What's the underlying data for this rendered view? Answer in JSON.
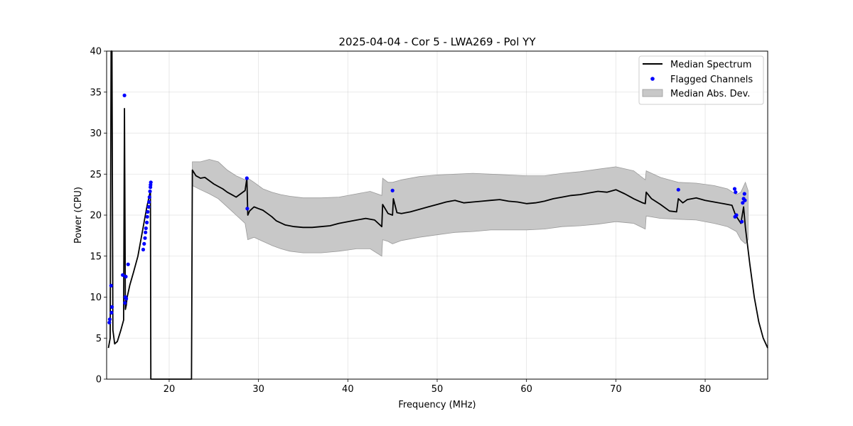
{
  "chart_data": {
    "type": "line",
    "title": "2025-04-04 - Cor 5 - LWA269 - Pol YY",
    "xlabel": "Frequency (MHz)",
    "ylabel": "Power (CPU)",
    "xlim": [
      13.0,
      87.0
    ],
    "ylim": [
      0,
      40
    ],
    "xticks": [
      20,
      30,
      40,
      50,
      60,
      70,
      80
    ],
    "yticks": [
      0,
      5,
      10,
      15,
      20,
      25,
      30,
      35,
      40
    ],
    "grid": true,
    "legend": {
      "placement": "top-right",
      "entries": [
        "Median Spectrum",
        "Flagged Channels",
        "Median Abs. Dev."
      ]
    },
    "colors": {
      "line": "#000000",
      "flagged": "#0000ff",
      "band": "#c8c8c8",
      "band_edge": "#9a9a9a"
    },
    "series": [
      {
        "name": "Median Spectrum",
        "kind": "line",
        "x": [
          13.2,
          13.4,
          13.5,
          13.6,
          13.7,
          13.9,
          14.2,
          14.6,
          14.9,
          15.0,
          15.1,
          15.2,
          15.3,
          15.6,
          16.0,
          16.5,
          17.0,
          17.5,
          17.9,
          17.95,
          22.5,
          22.6,
          23.0,
          23.5,
          24.0,
          24.5,
          25.0,
          25.5,
          26.0,
          26.5,
          27.0,
          27.5,
          28.0,
          28.5,
          28.7,
          28.8,
          29.0,
          29.5,
          30.0,
          30.5,
          31.0,
          31.5,
          32.0,
          33.0,
          34.0,
          35.0,
          36.0,
          37.0,
          38.0,
          39.0,
          40.0,
          41.0,
          42.0,
          43.0,
          43.8,
          43.9,
          44.5,
          45.0,
          45.1,
          45.5,
          46.0,
          47.0,
          48.0,
          49.0,
          50.0,
          51.0,
          52.0,
          53.0,
          54.0,
          55.0,
          56.0,
          57.0,
          58.0,
          59.0,
          60.0,
          61.0,
          62.0,
          63.0,
          64.0,
          65.0,
          66.0,
          67.0,
          68.0,
          69.0,
          70.0,
          71.0,
          72.0,
          73.0,
          73.3,
          73.4,
          74.0,
          75.0,
          76.0,
          76.8,
          77.0,
          77.5,
          78.0,
          79.0,
          80.0,
          81.0,
          82.0,
          83.0,
          83.4,
          83.7,
          84.0,
          84.3,
          84.5,
          85.0,
          85.5,
          86.0,
          86.5,
          87.0
        ],
        "y": [
          3.8,
          5.0,
          40,
          40,
          6.0,
          4.3,
          4.6,
          6.0,
          7.2,
          33.0,
          8.5,
          9.0,
          10.0,
          11.5,
          13.0,
          15.0,
          18.0,
          21.0,
          23.0,
          0,
          0,
          25.5,
          24.8,
          24.5,
          24.6,
          24.2,
          23.8,
          23.5,
          23.2,
          22.8,
          22.5,
          22.2,
          22.6,
          23.0,
          24.5,
          20.0,
          20.5,
          21.0,
          20.8,
          20.6,
          20.2,
          19.8,
          19.3,
          18.8,
          18.6,
          18.5,
          18.5,
          18.6,
          18.7,
          19.0,
          19.2,
          19.4,
          19.6,
          19.4,
          18.6,
          21.3,
          20.2,
          20.0,
          22.0,
          20.3,
          20.2,
          20.4,
          20.7,
          21.0,
          21.3,
          21.6,
          21.8,
          21.5,
          21.6,
          21.7,
          21.8,
          21.9,
          21.7,
          21.6,
          21.4,
          21.5,
          21.7,
          22.0,
          22.2,
          22.4,
          22.5,
          22.7,
          22.9,
          22.8,
          23.1,
          22.6,
          22.0,
          21.5,
          21.4,
          22.8,
          22.0,
          21.3,
          20.5,
          20.4,
          22.0,
          21.5,
          21.9,
          22.1,
          21.8,
          21.6,
          21.4,
          21.2,
          20.0,
          19.5,
          19.0,
          21.0,
          18.5,
          14.0,
          10.0,
          7.0,
          5.0,
          3.8
        ]
      },
      {
        "name": "Median Abs. Dev.",
        "kind": "band",
        "x": [
          22.6,
          23.5,
          24.5,
          25.5,
          26.5,
          27.5,
          28.5,
          28.8,
          29.5,
          30.5,
          31.5,
          32.5,
          33.5,
          35.0,
          37.0,
          39.0,
          41.0,
          42.5,
          43.8,
          43.9,
          44.5,
          45.0,
          46.0,
          48.0,
          50.0,
          52.0,
          54.0,
          56.0,
          58.0,
          60.0,
          62.0,
          64.0,
          66.0,
          68.0,
          70.0,
          72.0,
          73.3,
          73.4,
          75.0,
          77.0,
          79.0,
          81.0,
          82.5,
          83.5,
          84.0,
          84.5,
          84.8
        ],
        "upper": [
          26.5,
          26.5,
          26.8,
          26.5,
          25.5,
          24.8,
          24.3,
          24.5,
          24.0,
          23.2,
          22.8,
          22.5,
          22.3,
          22.1,
          22.1,
          22.2,
          22.6,
          22.9,
          22.4,
          24.5,
          24.0,
          24.0,
          24.3,
          24.7,
          24.9,
          25.0,
          25.1,
          25.0,
          24.9,
          24.8,
          24.8,
          25.1,
          25.3,
          25.6,
          25.9,
          25.4,
          24.3,
          25.4,
          24.6,
          24.0,
          23.9,
          23.6,
          23.2,
          22.5,
          22.8,
          24.0,
          23.0
        ],
        "lower": [
          23.6,
          23.1,
          22.6,
          22.0,
          21.0,
          20.0,
          19.0,
          17.0,
          17.3,
          16.8,
          16.3,
          15.9,
          15.6,
          15.4,
          15.4,
          15.6,
          15.9,
          15.9,
          15.0,
          17.0,
          16.8,
          16.5,
          16.9,
          17.3,
          17.6,
          17.9,
          18.0,
          18.2,
          18.2,
          18.2,
          18.3,
          18.6,
          18.7,
          18.9,
          19.2,
          19.0,
          18.3,
          19.9,
          19.6,
          19.5,
          19.4,
          19.0,
          18.6,
          18.0,
          17.0,
          16.5,
          17.0
        ]
      },
      {
        "name": "Flagged Channels",
        "kind": "scatter",
        "x": [
          13.3,
          13.35,
          13.5,
          13.55,
          13.6,
          14.8,
          15.0,
          15.05,
          15.1,
          15.15,
          15.2,
          15.4,
          17.1,
          17.2,
          17.3,
          17.35,
          17.4,
          17.5,
          17.55,
          17.6,
          17.7,
          17.75,
          17.8,
          17.85,
          17.9,
          17.92,
          17.95,
          28.7,
          28.75,
          45.0,
          77.0,
          83.3,
          83.4,
          83.5,
          83.35,
          84.1,
          84.2,
          84.3,
          84.4,
          84.45
        ],
        "y": [
          6.9,
          7.3,
          11.4,
          8.1,
          8.8,
          12.7,
          34.6,
          9.3,
          10.0,
          12.5,
          9.8,
          14.0,
          15.8,
          16.5,
          17.2,
          17.9,
          18.4,
          19.1,
          19.8,
          20.4,
          21.0,
          21.6,
          22.2,
          22.9,
          23.4,
          23.7,
          24.0,
          24.5,
          20.8,
          23.0,
          23.1,
          23.2,
          22.8,
          20.0,
          19.8,
          19.2,
          21.5,
          22.0,
          22.6,
          21.8
        ]
      }
    ]
  }
}
